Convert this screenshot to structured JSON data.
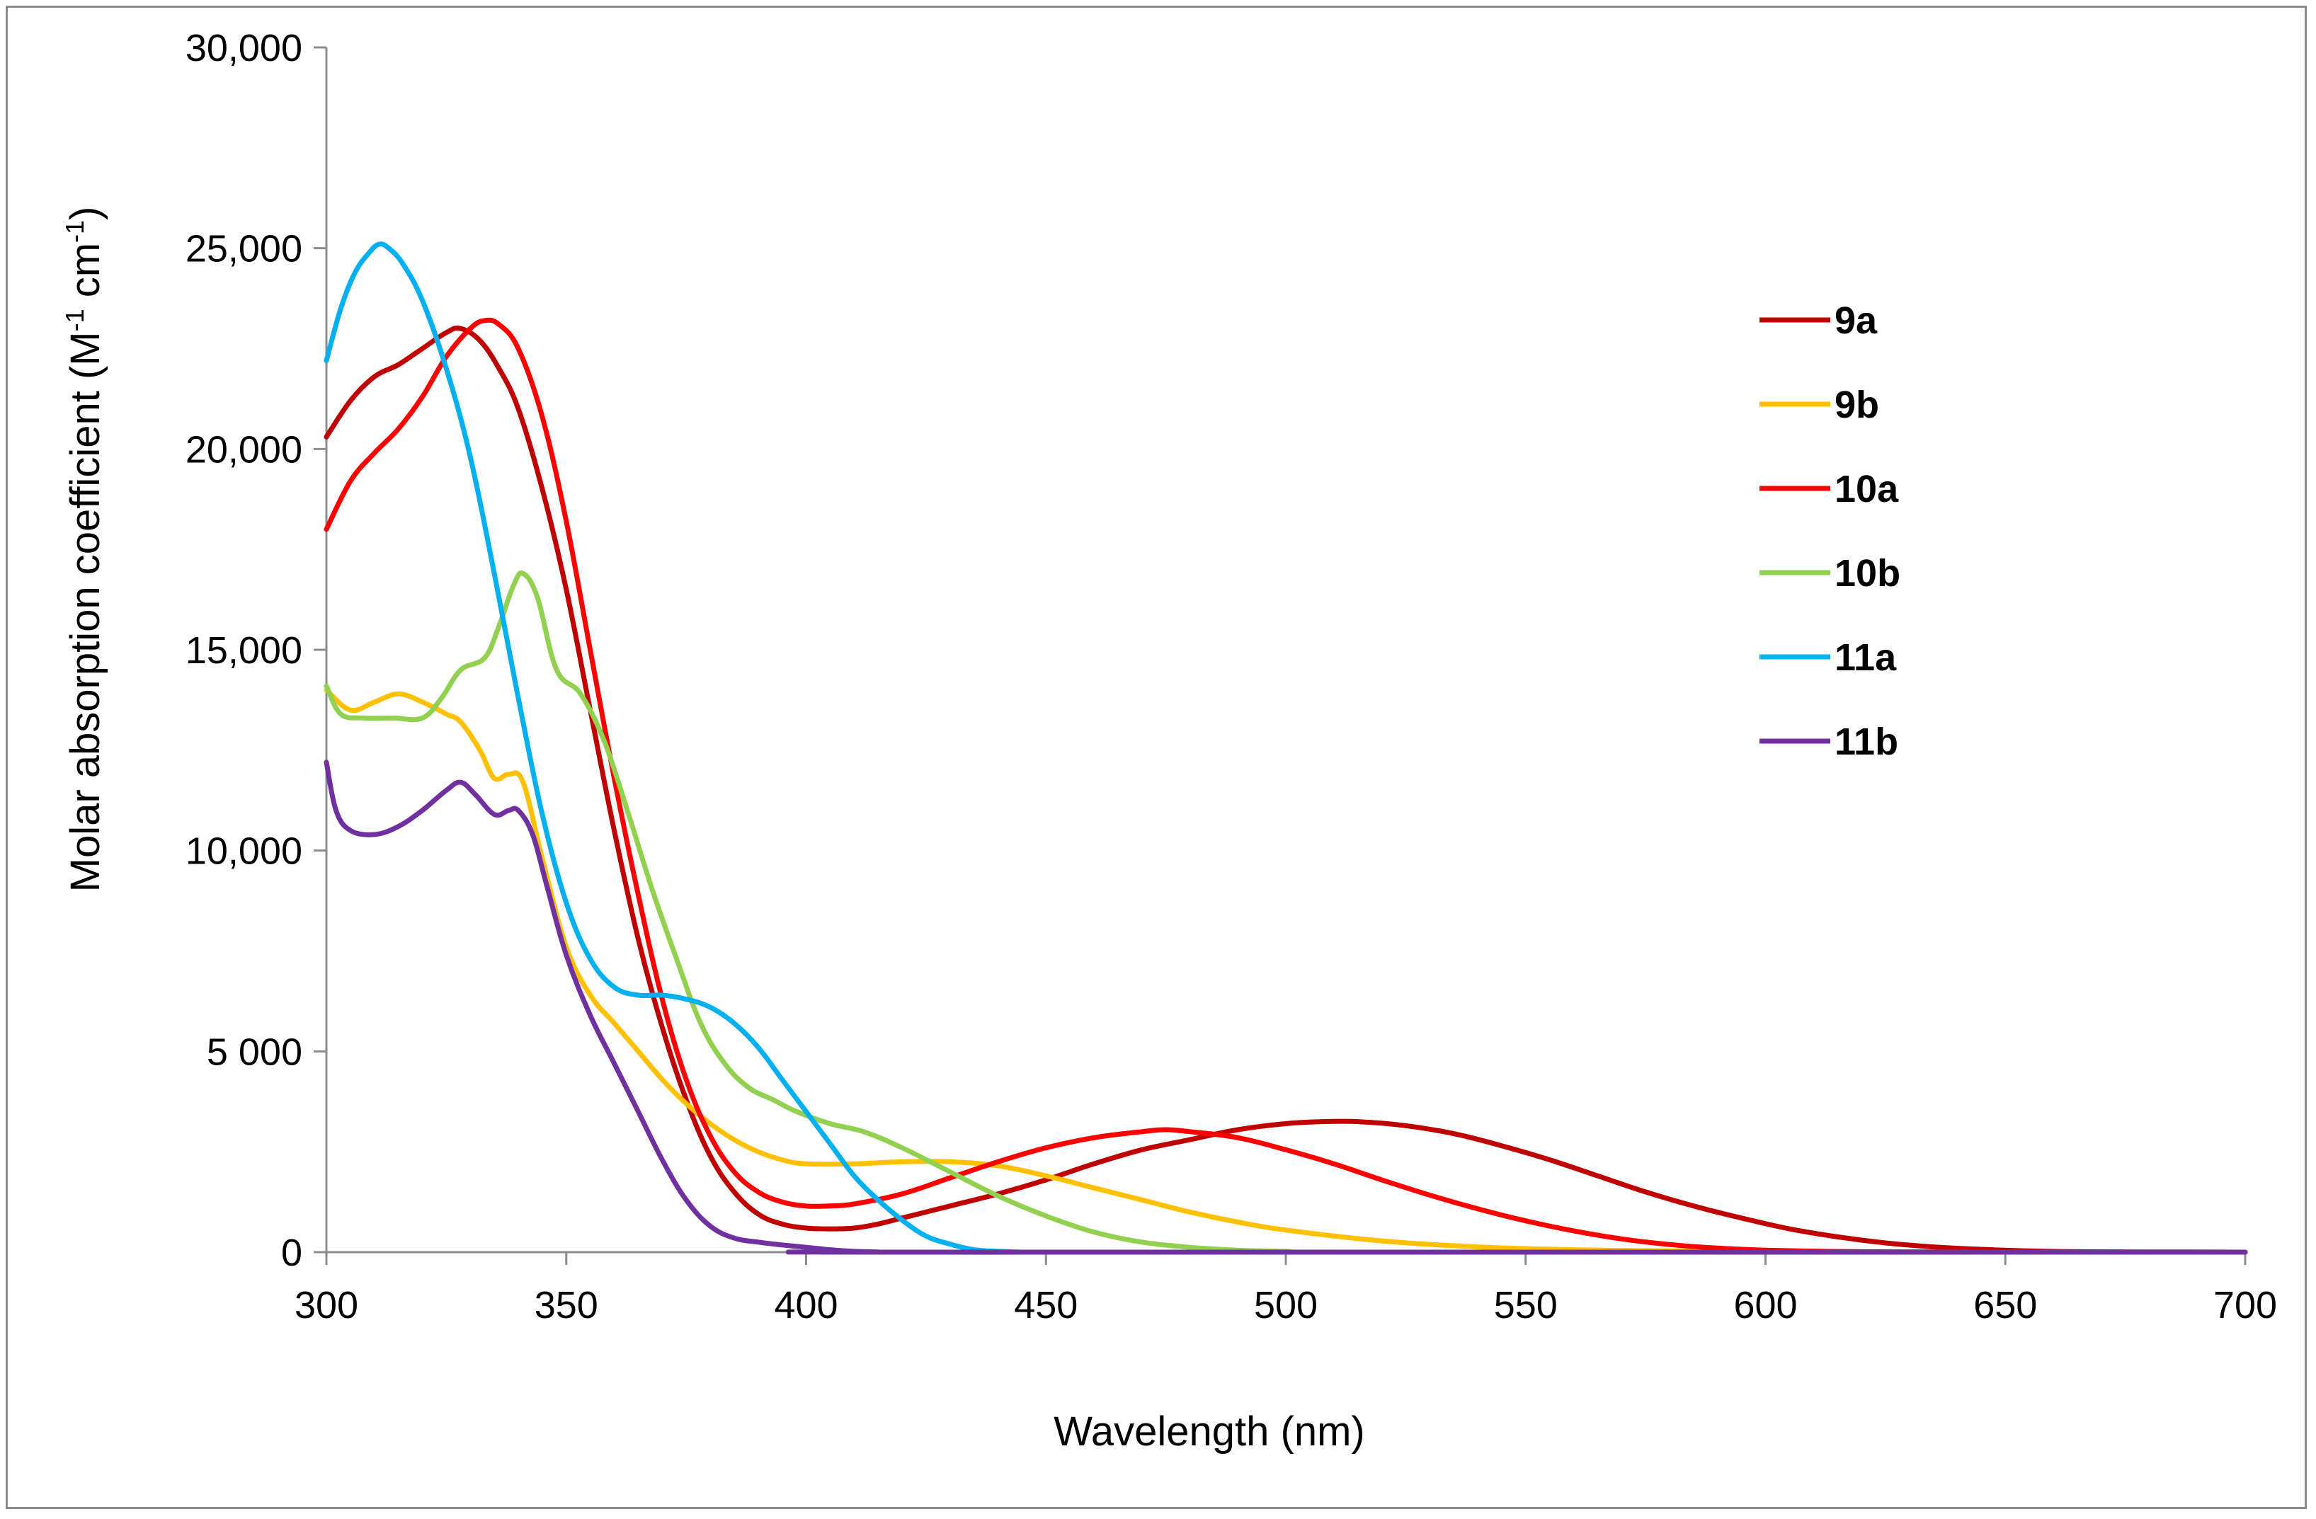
{
  "chart_data": {
    "type": "line",
    "title": "",
    "xlabel": "Wavelength (nm)",
    "ylabel_main": "Molar absorption coefficient (M",
    "ylabel_sup1": "-1",
    "ylabel_mid": " cm",
    "ylabel_sup2": "-1",
    "ylabel_end": ")",
    "xlim": [
      300,
      700
    ],
    "ylim": [
      0,
      30000
    ],
    "x_ticks": [
      300,
      350,
      400,
      450,
      500,
      550,
      600,
      650,
      700
    ],
    "x_tick_labels": [
      "300",
      "350",
      "400",
      "450",
      "500",
      "550",
      "600",
      "650",
      "700"
    ],
    "y_ticks": [
      0,
      5000,
      10000,
      15000,
      20000,
      25000,
      30000
    ],
    "y_tick_labels": [
      "0",
      "5 000",
      "10,000",
      "15,000",
      "20,000",
      "25,000",
      "30,000"
    ],
    "grid": false,
    "legend_position": "right",
    "series": [
      {
        "name": "9a",
        "color": "#c00000",
        "x": [
          300,
          305,
          310,
          315,
          320,
          325,
          328,
          332,
          336,
          340,
          345,
          350,
          355,
          360,
          365,
          370,
          375,
          380,
          385,
          390,
          395,
          400,
          405,
          410,
          415,
          420,
          430,
          440,
          450,
          460,
          470,
          480,
          490,
          500,
          508,
          515,
          525,
          535,
          545,
          555,
          565,
          575,
          585,
          595,
          605,
          615,
          625,
          635,
          645,
          655,
          665,
          680,
          700
        ],
        "y": [
          20300,
          21200,
          21800,
          22100,
          22500,
          22900,
          23000,
          22700,
          22000,
          21000,
          19000,
          16500,
          13500,
          10500,
          7800,
          5600,
          3800,
          2400,
          1500,
          950,
          700,
          600,
          580,
          600,
          700,
          850,
          1150,
          1450,
          1800,
          2200,
          2550,
          2800,
          3050,
          3200,
          3250,
          3250,
          3150,
          2950,
          2650,
          2300,
          1900,
          1500,
          1150,
          850,
          580,
          380,
          230,
          130,
          70,
          30,
          10,
          5,
          0
        ]
      },
      {
        "name": "9b",
        "color": "#ffc000",
        "x": [
          300,
          305,
          310,
          315,
          320,
          325,
          328,
          332,
          335,
          338,
          341,
          345,
          350,
          355,
          360,
          365,
          370,
          375,
          380,
          385,
          390,
          395,
          400,
          410,
          420,
          430,
          440,
          450,
          460,
          470,
          480,
          490,
          500,
          520,
          540,
          560,
          580,
          600,
          620,
          650,
          700
        ],
        "y": [
          14000,
          13500,
          13700,
          13900,
          13700,
          13400,
          13200,
          12500,
          11800,
          11900,
          11700,
          9800,
          7600,
          6400,
          5700,
          5000,
          4300,
          3700,
          3200,
          2800,
          2500,
          2300,
          2200,
          2200,
          2250,
          2250,
          2150,
          1900,
          1600,
          1300,
          1000,
          750,
          550,
          280,
          130,
          60,
          30,
          10,
          5,
          0,
          0
        ]
      },
      {
        "name": "10a",
        "color": "#ff0000",
        "x": [
          300,
          305,
          310,
          315,
          320,
          325,
          330,
          333,
          336,
          340,
          345,
          350,
          355,
          360,
          365,
          370,
          375,
          380,
          385,
          390,
          395,
          400,
          405,
          410,
          420,
          430,
          440,
          450,
          460,
          470,
          475,
          480,
          490,
          500,
          510,
          520,
          530,
          540,
          550,
          560,
          570,
          580,
          590,
          600,
          620,
          650,
          700
        ],
        "y": [
          18000,
          19200,
          19900,
          20500,
          21300,
          22300,
          23000,
          23200,
          23100,
          22500,
          20800,
          18200,
          15000,
          11800,
          8900,
          6300,
          4300,
          2900,
          2000,
          1500,
          1250,
          1150,
          1150,
          1200,
          1450,
          1850,
          2250,
          2600,
          2850,
          3000,
          3050,
          3000,
          2850,
          2550,
          2200,
          1800,
          1420,
          1080,
          780,
          530,
          330,
          190,
          100,
          50,
          10,
          0,
          0
        ]
      },
      {
        "name": "10b",
        "color": "#92d050",
        "x": [
          300,
          303,
          308,
          314,
          320,
          324,
          328,
          333,
          336,
          339,
          341,
          344,
          348,
          353,
          358,
          363,
          368,
          373,
          378,
          383,
          388,
          393,
          398,
          405,
          412,
          420,
          430,
          440,
          450,
          460,
          470,
          480,
          490,
          500,
          520,
          700
        ],
        "y": [
          14100,
          13400,
          13300,
          13300,
          13300,
          13800,
          14500,
          14800,
          15600,
          16600,
          16900,
          16300,
          14500,
          13900,
          12700,
          10900,
          9000,
          7300,
          5700,
          4700,
          4100,
          3800,
          3500,
          3200,
          3000,
          2600,
          2000,
          1400,
          900,
          500,
          250,
          120,
          50,
          20,
          0,
          0
        ]
      },
      {
        "name": "11a",
        "color": "#00b0f0",
        "x": [
          300,
          303,
          306,
          309,
          311,
          313,
          316,
          320,
          325,
          330,
          335,
          340,
          345,
          350,
          355,
          360,
          365,
          370,
          375,
          380,
          385,
          390,
          395,
          400,
          405,
          410,
          415,
          420,
          425,
          430,
          435,
          440,
          445,
          450,
          700
        ],
        "y": [
          22200,
          23500,
          24400,
          24900,
          25100,
          25000,
          24600,
          23700,
          22000,
          19800,
          16900,
          13800,
          10900,
          8700,
          7300,
          6600,
          6400,
          6400,
          6300,
          6100,
          5700,
          5100,
          4300,
          3500,
          2700,
          1900,
          1300,
          800,
          400,
          200,
          60,
          20,
          0,
          0,
          0
        ]
      },
      {
        "name": "11b",
        "color": "#7030a0",
        "x": [
          300,
          302,
          305,
          310,
          315,
          320,
          325,
          328,
          331,
          335,
          338,
          340,
          343,
          346,
          350,
          355,
          360,
          365,
          370,
          375,
          380,
          385,
          390,
          395,
          400,
          405,
          410,
          415,
          420,
          700
        ],
        "y": [
          12200,
          11000,
          10500,
          10400,
          10600,
          11000,
          11500,
          11700,
          11400,
          10900,
          11000,
          11000,
          10400,
          9100,
          7400,
          5900,
          4700,
          3500,
          2300,
          1300,
          650,
          350,
          250,
          180,
          120,
          60,
          20,
          5,
          0,
          0
        ]
      }
    ]
  }
}
